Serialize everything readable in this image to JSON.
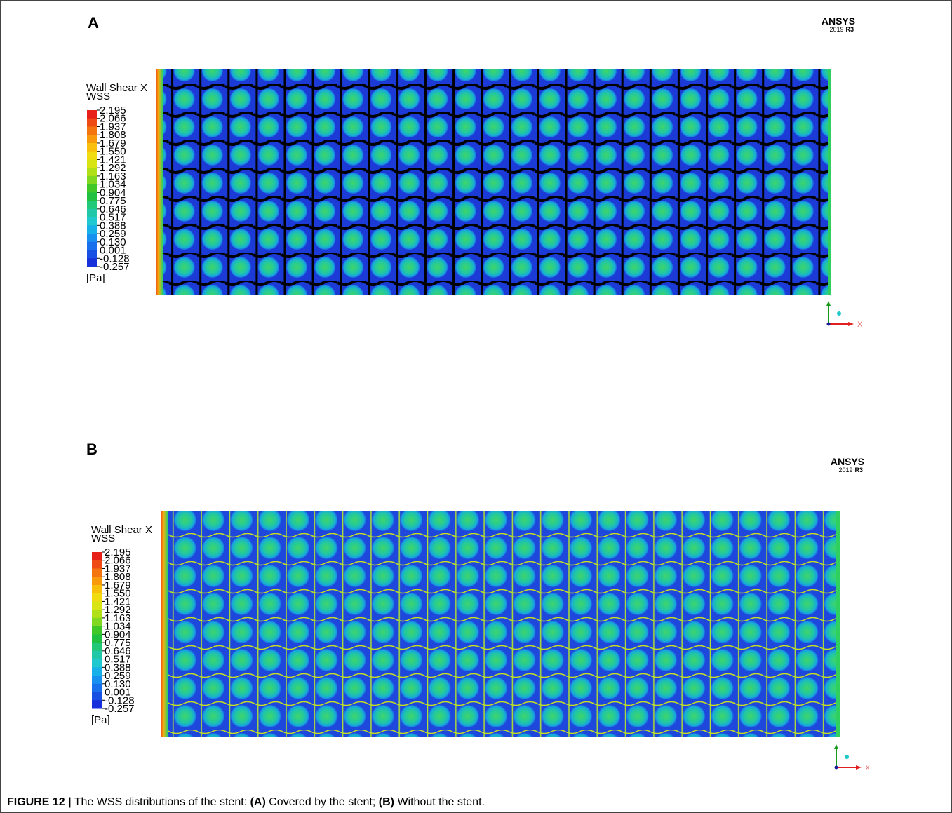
{
  "panels": [
    {
      "label": "A",
      "legend": {
        "title": [
          "Wall Shear X",
          "WSS"
        ],
        "ticks": [
          "2.195",
          "2.066",
          "1.937",
          "1.808",
          "1.679",
          "1.550",
          "1.421",
          "1.292",
          "1.163",
          "1.034",
          "0.904",
          "0.775",
          "0.646",
          "0.517",
          "0.388",
          "0.259",
          "0.130",
          "0.001",
          "-0.128",
          "-0.257"
        ],
        "unit": "[Pa]"
      },
      "logo": {
        "name": "ANSYS",
        "version": "2019",
        "release": "R3"
      },
      "axis": "X"
    },
    {
      "label": "B",
      "legend": {
        "title": [
          "Wall Shear X",
          "WSS"
        ],
        "ticks": [
          "2.195",
          "2.066",
          "1.937",
          "1.808",
          "1.679",
          "1.550",
          "1.421",
          "1.292",
          "1.163",
          "1.034",
          "0.904",
          "0.775",
          "0.646",
          "0.517",
          "0.388",
          "0.259",
          "0.130",
          "0.001",
          "-0.128",
          "-0.257"
        ],
        "unit": "[Pa]"
      },
      "logo": {
        "name": "ANSYS",
        "version": "2019",
        "release": "R3"
      },
      "axis": "X"
    }
  ],
  "caption": {
    "figure": "FIGURE 12 |",
    "text": "The WSS distributions of the stent:",
    "items": [
      {
        "key": "(A)",
        "text": "Covered by the stent;"
      },
      {
        "key": "(B)",
        "text": "Without the stent."
      }
    ]
  }
}
